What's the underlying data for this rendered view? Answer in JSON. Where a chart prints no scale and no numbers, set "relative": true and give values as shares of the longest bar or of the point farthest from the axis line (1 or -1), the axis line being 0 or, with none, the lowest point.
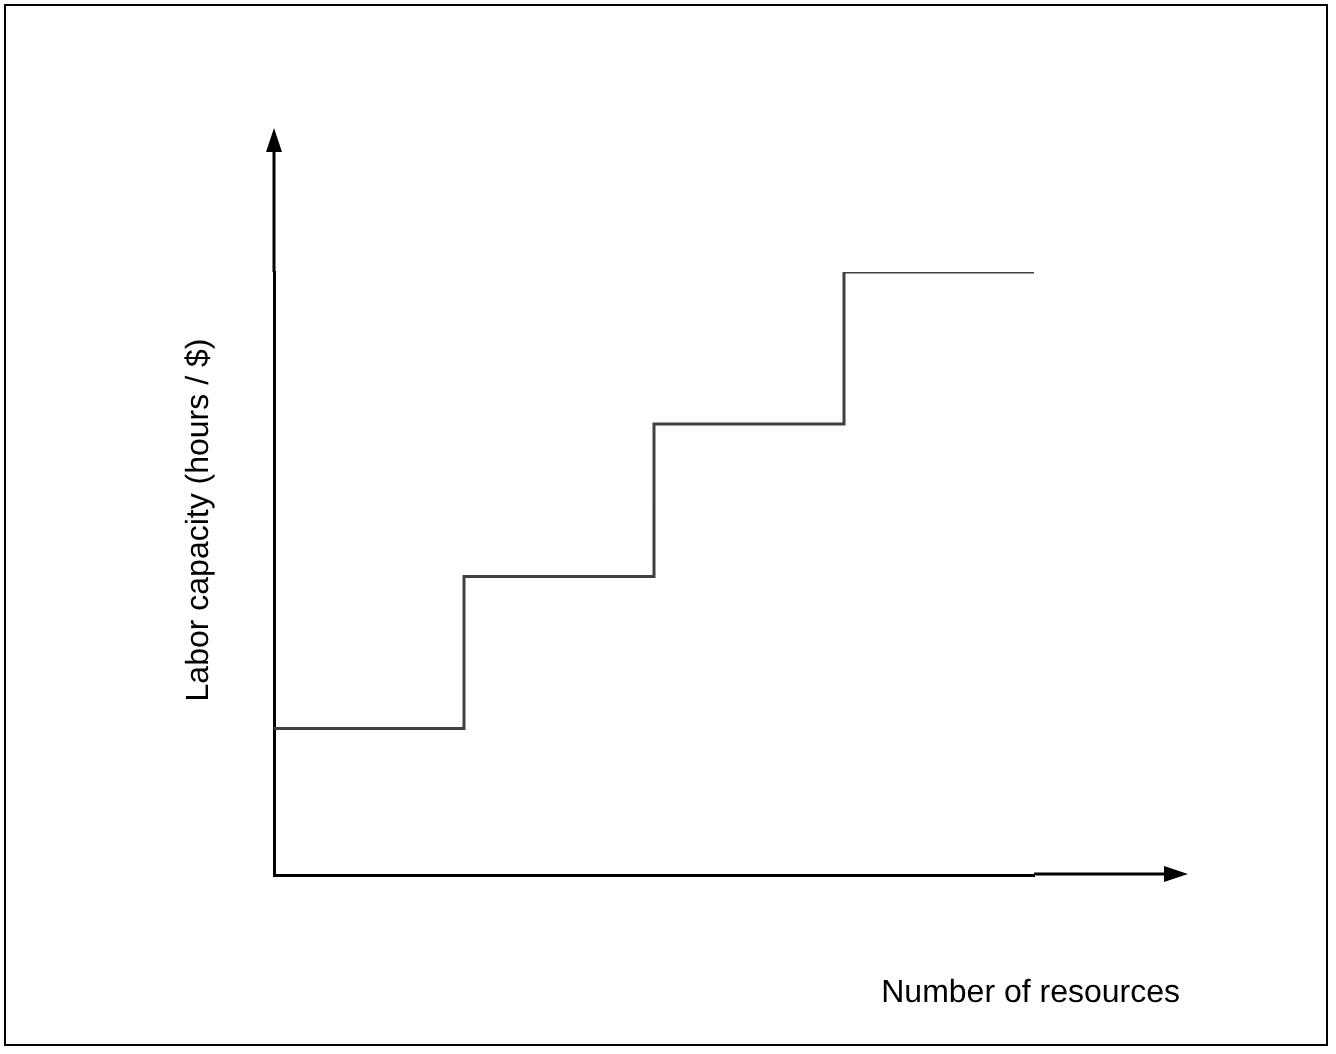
{
  "chart_data": {
    "type": "step",
    "xlabel": "Number of resources",
    "ylabel": "Labor capacity (hours / $)",
    "relative": true,
    "categories": [
      null,
      null,
      null,
      null,
      null
    ],
    "series": [
      {
        "color": "#404040",
        "values": [
          0.243,
          0.495,
          0.748,
          1,
          1
        ]
      }
    ],
    "marker": "none",
    "line_style": "solid",
    "grid": false,
    "legend": false
  }
}
